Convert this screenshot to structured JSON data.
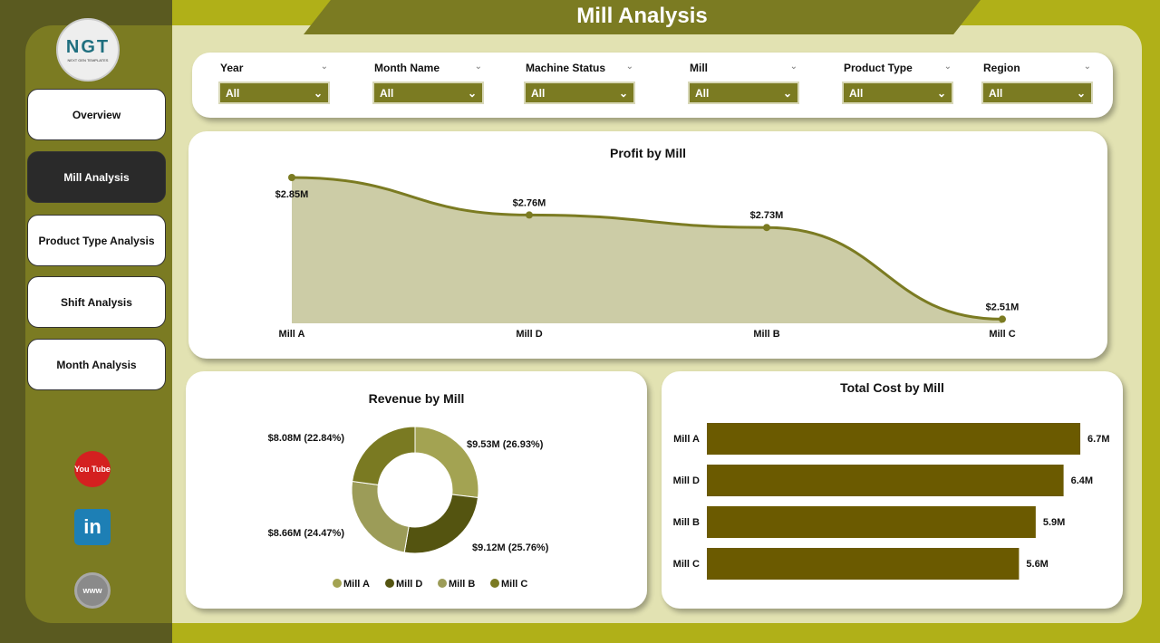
{
  "header": {
    "title": "Mill Analysis"
  },
  "logo": {
    "text": "NGT",
    "subtitle": "NEXT GEN TEMPLATES"
  },
  "sidebar": {
    "items": [
      {
        "label": "Overview"
      },
      {
        "label": "Mill Analysis",
        "active": true
      },
      {
        "label": "Product Type Analysis"
      },
      {
        "label": "Shift Analysis"
      },
      {
        "label": "Month Analysis"
      }
    ],
    "social": [
      {
        "icon": "youtube-icon",
        "text": "You Tube"
      },
      {
        "icon": "linkedin-icon",
        "text": "in"
      },
      {
        "icon": "globe-icon",
        "text": "www"
      }
    ]
  },
  "filters": [
    {
      "label": "Year",
      "value": "All"
    },
    {
      "label": "Month Name",
      "value": "All"
    },
    {
      "label": "Machine Status",
      "value": "All"
    },
    {
      "label": "Mill",
      "value": "All"
    },
    {
      "label": "Product Type",
      "value": "All"
    },
    {
      "label": "Region",
      "value": "All"
    }
  ],
  "colors": {
    "olive": "#7b7b22",
    "dark": "#5a5a20",
    "accent": "#b0b018",
    "bar": "#6b5a00",
    "area": "#cccca6"
  },
  "chart_data": [
    {
      "type": "area",
      "title": "Profit by Mill",
      "categories": [
        "Mill A",
        "Mill D",
        "Mill B",
        "Mill C"
      ],
      "values": [
        2.85,
        2.76,
        2.73,
        2.51
      ],
      "labels": [
        "$2.85M",
        "$2.76M",
        "$2.73M",
        "$2.51M"
      ],
      "ylim": [
        2.5,
        2.85
      ],
      "grid": false
    },
    {
      "type": "pie",
      "title": "Revenue by Mill",
      "categories": [
        "Mill A",
        "Mill D",
        "Mill B",
        "Mill C"
      ],
      "values": [
        9.53,
        9.12,
        8.66,
        8.08
      ],
      "labels": [
        "$9.53M (26.93%)",
        "$9.12M (25.76%)",
        "$8.66M (24.47%)",
        "$8.08M (22.84%)"
      ],
      "colors": [
        "#a3a352",
        "#545410",
        "#9c9c58",
        "#7a7a22"
      ],
      "legend": "bottom",
      "donut": true
    },
    {
      "type": "bar",
      "orientation": "horizontal",
      "title": "Total Cost by Mill",
      "categories": [
        "Mill A",
        "Mill D",
        "Mill B",
        "Mill C"
      ],
      "values": [
        6.7,
        6.4,
        5.9,
        5.6
      ],
      "labels": [
        "6.7M",
        "6.4M",
        "5.9M",
        "5.6M"
      ],
      "xlim": [
        0,
        7
      ],
      "grid": false
    }
  ]
}
